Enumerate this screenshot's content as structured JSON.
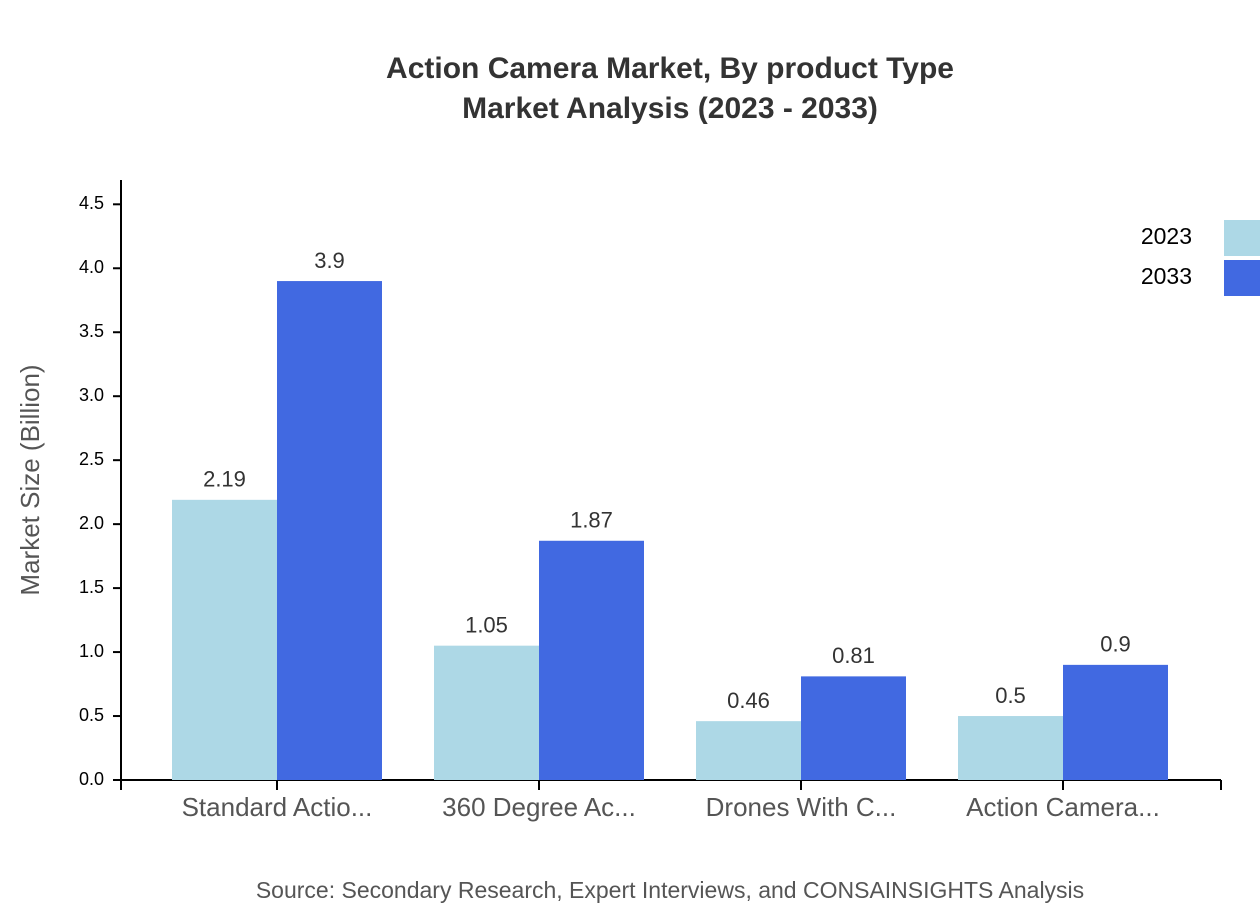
{
  "chart_data": {
    "type": "bar",
    "title": [
      "Action Camera Market, By product Type",
      "Market Analysis (2023 - 2033)"
    ],
    "y_label": "Market Size (Billion)",
    "source": "Source: Secondary Research, Expert Interviews, and CONSAINSIGHTS Analysis",
    "categories": [
      "Standard Actio...",
      "360 Degree Ac...",
      "Drones With C...",
      "Action Camera..."
    ],
    "series": [
      {
        "name": "2023",
        "color": "#add8e6",
        "values": [
          2.19,
          1.05,
          0.46,
          0.5
        ]
      },
      {
        "name": "2033",
        "color": "#4169e1",
        "values": [
          3.9,
          1.87,
          0.81,
          0.9
        ]
      }
    ],
    "ylim": [
      0,
      4.69
    ],
    "yticks": [
      {
        "value": 0,
        "label": "0.0"
      },
      0.5,
      {
        "value": 1,
        "label": "1.0"
      },
      1.5,
      {
        "value": 2,
        "label": "2.0"
      },
      2.5,
      {
        "value": 3,
        "label": "3.0"
      },
      3.5,
      {
        "value": 4,
        "label": "4.0"
      },
      4.5
    ],
    "legend": "top-right"
  }
}
